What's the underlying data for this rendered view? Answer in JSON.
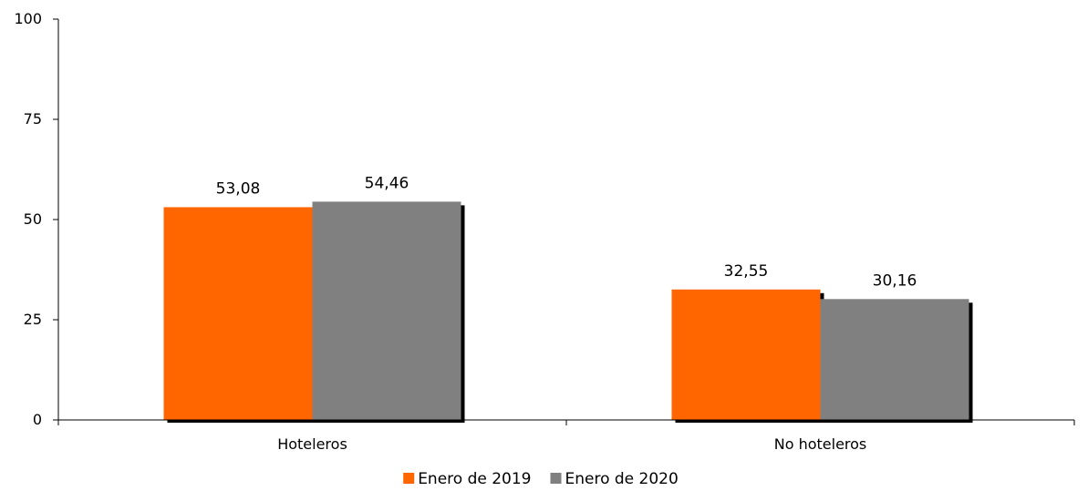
{
  "chart_data": {
    "type": "bar",
    "categories": [
      "Hoteleros",
      "No hoteleros"
    ],
    "series": [
      {
        "name": "Enero de 2019",
        "values": [
          53.08,
          32.55
        ],
        "color": "#ff6600"
      },
      {
        "name": "Enero de 2020",
        "values": [
          54.46,
          30.16
        ],
        "color": "#808080"
      }
    ],
    "data_labels": [
      [
        "53,08",
        "32,55"
      ],
      [
        "54,46",
        "30,16"
      ]
    ],
    "ylim": [
      0,
      100
    ],
    "yticks": [
      0,
      25,
      50,
      75,
      100
    ],
    "grid": false,
    "legend": "bottom-center",
    "bar_shadow": true,
    "title": "",
    "xlabel": "",
    "ylabel": ""
  }
}
